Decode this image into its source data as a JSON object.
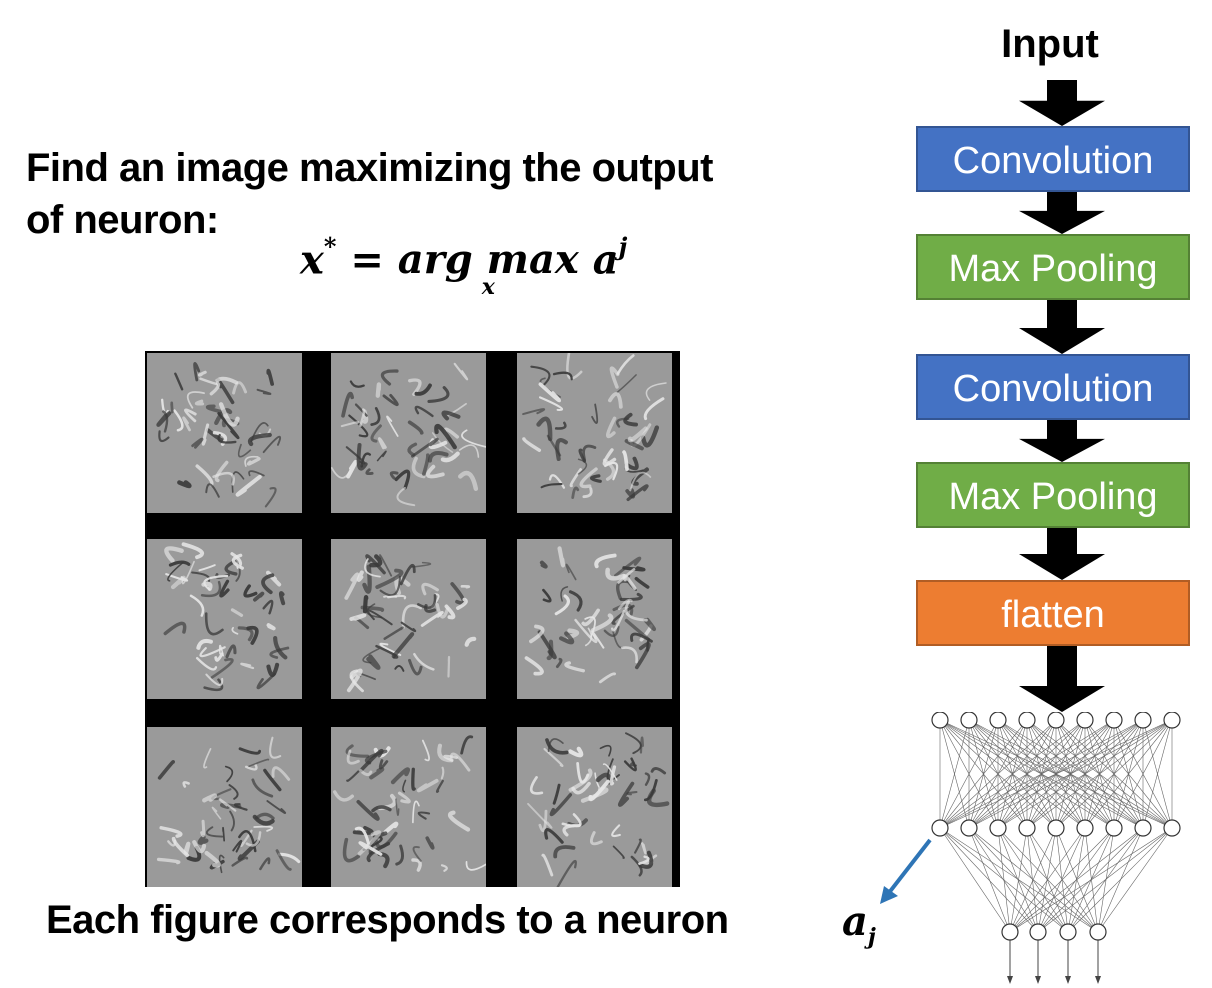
{
  "left_panel": {
    "heading_line1": "Find an image maximizing the output",
    "heading_line2": "of neuron:",
    "formula": {
      "lhs": "x",
      "lhs_sup": "*",
      "equals": " = ",
      "operator": "arg max",
      "operator_sub": "x",
      "rhs": " a",
      "rhs_sup": "j"
    },
    "caption": "Each figure corresponds to a neuron",
    "grid": {
      "rows": 3,
      "cols": 3,
      "separator_color": "#000000",
      "cell_color": "#9a9a9a"
    }
  },
  "architecture": {
    "input_label": "Input",
    "layers": [
      {
        "label": "Convolution",
        "kind": "conv",
        "color": "#4472c4"
      },
      {
        "label": "Max Pooling",
        "kind": "pool",
        "color": "#70ad47"
      },
      {
        "label": "Convolution",
        "kind": "conv",
        "color": "#4472c4"
      },
      {
        "label": "Max Pooling",
        "kind": "pool",
        "color": "#70ad47"
      },
      {
        "label": "flatten",
        "kind": "flat",
        "color": "#ed7d31"
      }
    ],
    "network": {
      "layer_sizes": [
        9,
        9,
        4
      ]
    },
    "neuron_label": "a",
    "neuron_label_sub": "j",
    "pointer_color": "#2e75b6"
  }
}
